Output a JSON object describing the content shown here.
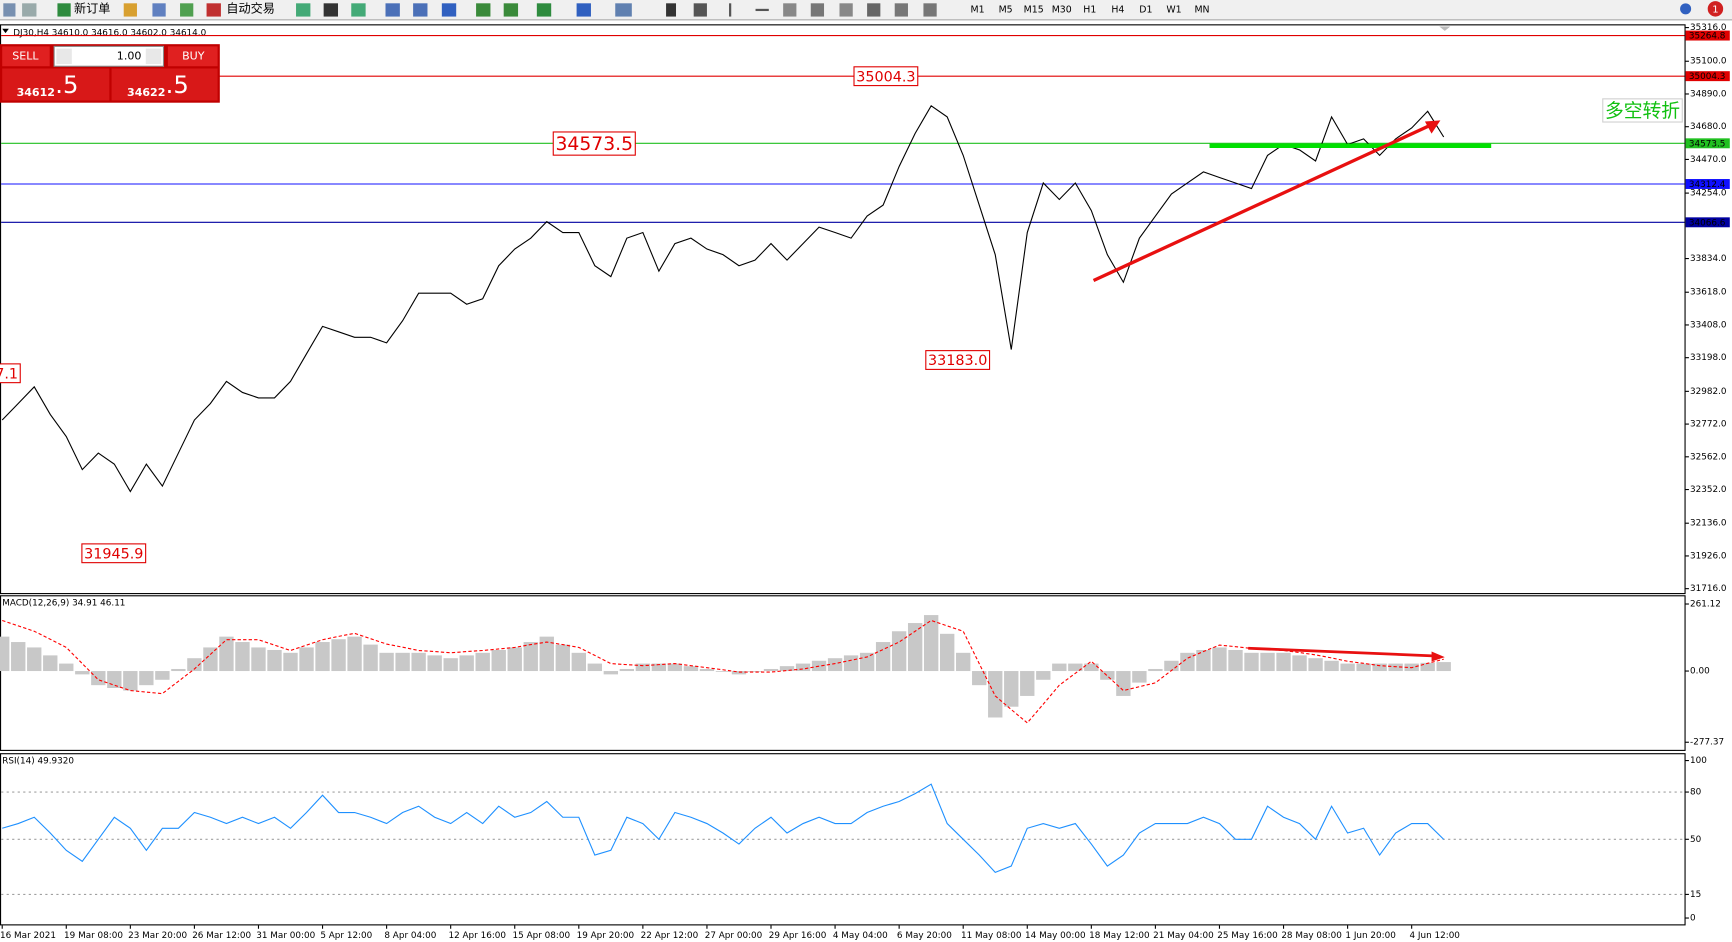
{
  "toolbar": {
    "new_order": "新订单",
    "auto_trading": "自动交易",
    "timeframes": [
      "M1",
      "M5",
      "M15",
      "M30",
      "H1",
      "H4",
      "D1",
      "W1",
      "MN"
    ],
    "notifications": "1"
  },
  "trade_panel": {
    "sell": "SELL",
    "buy": "BUY",
    "lots": "1.00",
    "sell_price": {
      "main": "34612",
      "fraction": ".5"
    },
    "buy_price": {
      "main": "34622",
      "fraction": ".5"
    }
  },
  "chart_data": [
    {
      "type": "line",
      "title": "DJ30,H4  34610.0 34616.0 34602.0 34614.0",
      "categories": [
        "16 Mar 2021",
        null,
        null,
        null,
        "19 Mar 08:00",
        null,
        null,
        null,
        "23 Mar 20:00",
        null,
        null,
        null,
        "26 Mar 12:00",
        null,
        null,
        null,
        "31 Mar 00:00",
        null,
        null,
        null,
        "5 Apr 12:00",
        null,
        null,
        null,
        "8 Apr 04:00",
        null,
        null,
        null,
        "12 Apr 16:00",
        null,
        null,
        null,
        "15 Apr 08:00",
        null,
        null,
        null,
        "19 Apr 20:00",
        null,
        null,
        null,
        "22 Apr 12:00",
        null,
        null,
        null,
        "27 Apr 00:00",
        null,
        null,
        null,
        "29 Apr 16:00",
        null,
        null,
        null,
        "4 May 04:00",
        null,
        null,
        null,
        "6 May 20:00",
        null,
        null,
        null,
        "11 May 08:00",
        null,
        null,
        null,
        "14 May 00:00",
        null,
        null,
        null,
        "18 May 12:00",
        null,
        null,
        null,
        "21 May 04:00",
        null,
        null,
        null,
        "25 May 16:00",
        null,
        null,
        null,
        "28 May 08:00",
        null,
        null,
        null,
        "1 Jun 20:00",
        null,
        null,
        null,
        "4 Jun 12:00",
        null,
        null
      ],
      "series": [
        {
          "color": "#000000",
          "values": [
            32798,
            32904,
            33011,
            32834,
            32692,
            32480,
            32586,
            32515,
            32339,
            32515,
            32374,
            32586,
            32798,
            32904,
            33046,
            32975,
            32940,
            32940,
            33046,
            33223,
            33399,
            33364,
            33329,
            33329,
            33293,
            33435,
            33612,
            33612,
            33612,
            33541,
            33576,
            33788,
            33895,
            33965,
            34071,
            34001,
            34001,
            33788,
            33718,
            33965,
            34001,
            33753,
            33930,
            33965,
            33895,
            33859,
            33788,
            33824,
            33930,
            33824,
            33930,
            34036,
            34001,
            33965,
            34107,
            34177,
            34425,
            34637,
            34814,
            34743,
            34496,
            34177,
            33859,
            33250,
            34001,
            34319,
            34213,
            34319,
            34142,
            33859,
            33682,
            33965,
            34107,
            34248,
            34319,
            34390,
            34354,
            34319,
            34283,
            34496,
            34566,
            34531,
            34460,
            34743,
            34566,
            34602,
            34496,
            34602,
            34672,
            34779,
            34614
          ]
        }
      ],
      "ylim": [
        31688,
        35330
      ],
      "yticks": [
        {
          "value": 35316,
          "label": "35316.0"
        },
        {
          "value": 35100,
          "label": "35100.0"
        },
        {
          "value": 34890,
          "label": "34890.0"
        },
        {
          "value": 34680,
          "label": "34680.0"
        },
        {
          "value": 34470,
          "label": "34470.0"
        },
        {
          "value": 34254,
          "label": "34254.0"
        },
        {
          "value": 33834,
          "label": "33834.0"
        },
        {
          "value": 33618,
          "label": "33618.0"
        },
        {
          "value": 33408,
          "label": "33408.0"
        },
        {
          "value": 33198,
          "label": "33198.0"
        },
        {
          "value": 32982,
          "label": "32982.0"
        },
        {
          "value": 32772,
          "label": "32772.0"
        },
        {
          "value": 32562,
          "label": "32562.0"
        },
        {
          "value": 32352,
          "label": "32352.0"
        },
        {
          "value": 32136,
          "label": "32136.0"
        },
        {
          "value": 31926,
          "label": "31926.0"
        },
        {
          "value": 31716,
          "label": "31716.0"
        }
      ],
      "levels": [
        {
          "value": 35264.8,
          "color": "#e00000"
        },
        {
          "value": 35004.3,
          "color": "#e00000"
        },
        {
          "value": 34573.5,
          "color": "#20c020"
        },
        {
          "value": 34312.4,
          "color": "#1010ff"
        },
        {
          "value": 34066.6,
          "color": "#0000a0"
        }
      ],
      "annotations": [
        "35004.3",
        "34573.5",
        "33183.0",
        "31945.9",
        "7.1",
        "多空转折"
      ]
    },
    {
      "type": "macd",
      "title": "MACD(12,26,9) 34.91 46.11",
      "series": [
        {
          "color": "#c8c8c8",
          "style": "histogram",
          "values": [
            134,
            113,
            92,
            61,
            29,
            -13,
            -55,
            -66,
            -76,
            -55,
            -34,
            8,
            50,
            92,
            134,
            113,
            92,
            82,
            71,
            92,
            113,
            124,
            134,
            103,
            71,
            71,
            71,
            61,
            50,
            61,
            71,
            82,
            92,
            113,
            134,
            103,
            71,
            29,
            -13,
            8,
            29,
            29,
            29,
            19,
            8,
            -3,
            -13,
            -3,
            8,
            19,
            29,
            40,
            50,
            61,
            71,
            113,
            155,
            187,
            218,
            145,
            71,
            -55,
            -181,
            -139,
            -97,
            -34,
            29,
            29,
            29,
            -34,
            -97,
            -45,
            8,
            40,
            71,
            82,
            92,
            82,
            71,
            71,
            71,
            61,
            50,
            40,
            29,
            29,
            29,
            29,
            29,
            32,
            34.91
          ]
        },
        {
          "color": "#ff0000",
          "style": "dashed",
          "values": [
            197,
            176,
            155,
            124,
            92,
            29,
            -34,
            -55,
            -76,
            -82,
            -88,
            -40,
            8,
            65,
            122,
            122,
            122,
            101,
            80,
            101,
            122,
            135,
            147,
            126,
            105,
            93,
            80,
            76,
            71,
            76,
            80,
            86,
            92,
            103,
            113,
            103,
            92,
            61,
            29,
            25,
            21,
            25,
            29,
            21,
            13,
            5,
            -4,
            -4,
            -4,
            2,
            8,
            19,
            29,
            42,
            55,
            84,
            113,
            155,
            197,
            176,
            155,
            29,
            -97,
            -150,
            -202,
            -129,
            -55,
            -9,
            38,
            -19,
            -76,
            -61,
            -46,
            2,
            50,
            76,
            101,
            95,
            88,
            84,
            80,
            72,
            63,
            51,
            38,
            30,
            21,
            17,
            13,
            30,
            46.11
          ]
        }
      ],
      "ylim": [
        -307,
        291
      ],
      "yticks": [
        261.12,
        {
          "value": 0,
          "label": "0.00"
        },
        -277.37
      ]
    },
    {
      "type": "line",
      "title": "RSI(14) 49.9320",
      "series": [
        {
          "color": "#1e90ff",
          "values": [
            57,
            60,
            64,
            54,
            43,
            36,
            50,
            64,
            57,
            43,
            57,
            57,
            67,
            64,
            60,
            64,
            60,
            64,
            57,
            67,
            78,
            67,
            67,
            64,
            60,
            67,
            71,
            64,
            60,
            67,
            60,
            71,
            64,
            67,
            74,
            64,
            64,
            40,
            43,
            64,
            60,
            50,
            67,
            64,
            60,
            54,
            47,
            57,
            64,
            54,
            60,
            64,
            60,
            60,
            67,
            71,
            74,
            79,
            85,
            60,
            50,
            40,
            29,
            33,
            57,
            60,
            57,
            60,
            47,
            33,
            40,
            54,
            60,
            60,
            60,
            64,
            60,
            50,
            50,
            71,
            64,
            60,
            50,
            71,
            54,
            57,
            40,
            54,
            60,
            60,
            49.932
          ]
        }
      ],
      "ylim": [
        -4,
        104
      ],
      "yticks": [
        100,
        80,
        50,
        15,
        0
      ]
    }
  ]
}
